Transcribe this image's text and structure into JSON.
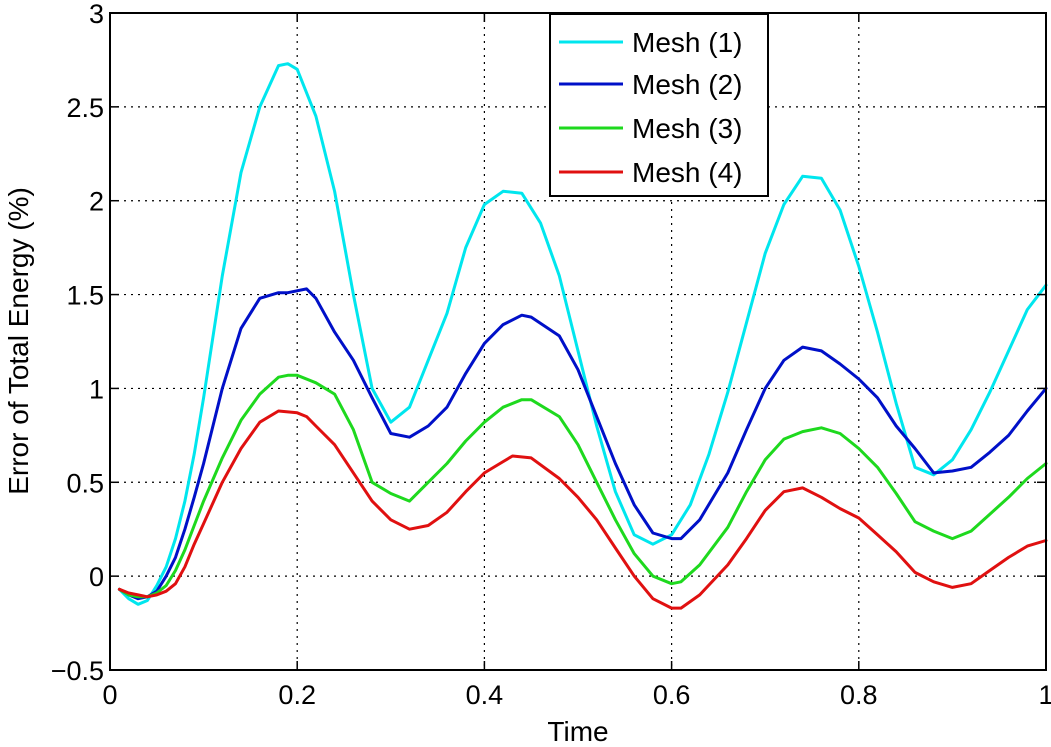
{
  "chart_data": {
    "type": "line",
    "title": "",
    "xlabel": "Time",
    "ylabel": "Error of Total Energy (%)",
    "xlim": [
      0,
      1
    ],
    "ylim": [
      -0.5,
      3
    ],
    "xticks": [
      0,
      0.2,
      0.4,
      0.6,
      0.8,
      1
    ],
    "xtick_labels": [
      "0",
      "0.2",
      "0.4",
      "0.6",
      "0.8",
      "1"
    ],
    "yticks": [
      -0.5,
      0,
      0.5,
      1,
      1.5,
      2,
      2.5,
      3
    ],
    "ytick_labels": [
      "−0.5",
      "0",
      "0.5",
      "1",
      "1.5",
      "2",
      "2.5",
      "3"
    ],
    "grid": true,
    "legend_position": "top-right",
    "series": [
      {
        "name": "Mesh (1)",
        "color": "#00e6ee",
        "x": [
          0.01,
          0.02,
          0.03,
          0.04,
          0.05,
          0.06,
          0.07,
          0.08,
          0.09,
          0.1,
          0.12,
          0.14,
          0.16,
          0.18,
          0.19,
          0.2,
          0.22,
          0.24,
          0.26,
          0.28,
          0.3,
          0.32,
          0.34,
          0.36,
          0.38,
          0.4,
          0.42,
          0.44,
          0.46,
          0.48,
          0.5,
          0.52,
          0.54,
          0.56,
          0.58,
          0.6,
          0.62,
          0.64,
          0.66,
          0.68,
          0.7,
          0.72,
          0.74,
          0.76,
          0.78,
          0.8,
          0.82,
          0.84,
          0.86,
          0.88,
          0.9,
          0.92,
          0.94,
          0.96,
          0.98,
          1.0
        ],
        "values": [
          -0.07,
          -0.12,
          -0.15,
          -0.13,
          -0.05,
          0.05,
          0.2,
          0.4,
          0.65,
          0.95,
          1.6,
          2.15,
          2.5,
          2.72,
          2.73,
          2.7,
          2.45,
          2.05,
          1.5,
          1.0,
          0.82,
          0.9,
          1.15,
          1.4,
          1.75,
          1.98,
          2.05,
          2.04,
          1.88,
          1.6,
          1.2,
          0.8,
          0.45,
          0.22,
          0.17,
          0.22,
          0.38,
          0.65,
          0.98,
          1.35,
          1.72,
          1.98,
          2.13,
          2.12,
          1.95,
          1.65,
          1.3,
          0.92,
          0.58,
          0.54,
          0.62,
          0.78,
          0.98,
          1.2,
          1.42,
          1.55
        ]
      },
      {
        "name": "Mesh (2)",
        "color": "#0010c8",
        "x": [
          0.01,
          0.02,
          0.03,
          0.04,
          0.05,
          0.06,
          0.07,
          0.08,
          0.09,
          0.1,
          0.12,
          0.14,
          0.16,
          0.18,
          0.19,
          0.21,
          0.22,
          0.24,
          0.26,
          0.28,
          0.3,
          0.32,
          0.34,
          0.36,
          0.38,
          0.4,
          0.42,
          0.44,
          0.45,
          0.48,
          0.5,
          0.52,
          0.54,
          0.56,
          0.58,
          0.6,
          0.61,
          0.63,
          0.66,
          0.68,
          0.7,
          0.72,
          0.74,
          0.76,
          0.78,
          0.8,
          0.82,
          0.84,
          0.86,
          0.88,
          0.9,
          0.92,
          0.94,
          0.96,
          0.98,
          1.0
        ],
        "values": [
          -0.07,
          -0.1,
          -0.12,
          -0.11,
          -0.08,
          0.0,
          0.1,
          0.25,
          0.42,
          0.6,
          1.0,
          1.32,
          1.48,
          1.51,
          1.51,
          1.53,
          1.48,
          1.3,
          1.15,
          0.95,
          0.76,
          0.74,
          0.8,
          0.9,
          1.08,
          1.24,
          1.34,
          1.39,
          1.38,
          1.28,
          1.1,
          0.85,
          0.6,
          0.38,
          0.23,
          0.2,
          0.2,
          0.3,
          0.55,
          0.78,
          1.0,
          1.15,
          1.22,
          1.2,
          1.13,
          1.05,
          0.95,
          0.8,
          0.68,
          0.55,
          0.56,
          0.58,
          0.66,
          0.75,
          0.88,
          1.0
        ]
      },
      {
        "name": "Mesh (3)",
        "color": "#1ed91e",
        "x": [
          0.01,
          0.02,
          0.03,
          0.04,
          0.05,
          0.06,
          0.07,
          0.08,
          0.09,
          0.1,
          0.12,
          0.14,
          0.16,
          0.18,
          0.19,
          0.2,
          0.22,
          0.24,
          0.26,
          0.28,
          0.3,
          0.32,
          0.34,
          0.36,
          0.38,
          0.4,
          0.42,
          0.44,
          0.45,
          0.48,
          0.5,
          0.52,
          0.54,
          0.56,
          0.58,
          0.6,
          0.61,
          0.63,
          0.66,
          0.68,
          0.7,
          0.72,
          0.74,
          0.76,
          0.78,
          0.8,
          0.82,
          0.84,
          0.86,
          0.88,
          0.9,
          0.92,
          0.94,
          0.96,
          0.98,
          1.0
        ],
        "values": [
          -0.07,
          -0.1,
          -0.11,
          -0.11,
          -0.09,
          -0.05,
          0.03,
          0.14,
          0.27,
          0.4,
          0.63,
          0.83,
          0.97,
          1.06,
          1.07,
          1.07,
          1.03,
          0.97,
          0.78,
          0.5,
          0.44,
          0.4,
          0.5,
          0.6,
          0.72,
          0.82,
          0.9,
          0.94,
          0.94,
          0.85,
          0.7,
          0.5,
          0.3,
          0.12,
          0.0,
          -0.04,
          -0.03,
          0.06,
          0.26,
          0.45,
          0.62,
          0.73,
          0.77,
          0.79,
          0.76,
          0.68,
          0.58,
          0.44,
          0.29,
          0.24,
          0.2,
          0.24,
          0.33,
          0.42,
          0.52,
          0.6
        ]
      },
      {
        "name": "Mesh (4)",
        "color": "#e01010",
        "x": [
          0.01,
          0.02,
          0.03,
          0.04,
          0.05,
          0.06,
          0.07,
          0.08,
          0.09,
          0.1,
          0.12,
          0.14,
          0.16,
          0.18,
          0.2,
          0.21,
          0.22,
          0.24,
          0.26,
          0.28,
          0.3,
          0.32,
          0.34,
          0.36,
          0.38,
          0.4,
          0.42,
          0.43,
          0.45,
          0.48,
          0.5,
          0.52,
          0.54,
          0.56,
          0.58,
          0.6,
          0.61,
          0.63,
          0.66,
          0.68,
          0.7,
          0.72,
          0.74,
          0.76,
          0.78,
          0.8,
          0.82,
          0.84,
          0.86,
          0.88,
          0.9,
          0.92,
          0.94,
          0.96,
          0.98,
          1.0
        ],
        "values": [
          -0.07,
          -0.09,
          -0.1,
          -0.11,
          -0.1,
          -0.08,
          -0.04,
          0.05,
          0.17,
          0.28,
          0.5,
          0.68,
          0.82,
          0.88,
          0.87,
          0.85,
          0.8,
          0.7,
          0.55,
          0.4,
          0.3,
          0.25,
          0.27,
          0.34,
          0.45,
          0.55,
          0.61,
          0.64,
          0.63,
          0.52,
          0.42,
          0.3,
          0.15,
          0.0,
          -0.12,
          -0.17,
          -0.17,
          -0.1,
          0.06,
          0.2,
          0.35,
          0.45,
          0.47,
          0.42,
          0.36,
          0.31,
          0.22,
          0.13,
          0.02,
          -0.03,
          -0.06,
          -0.04,
          0.03,
          0.1,
          0.16,
          0.19
        ]
      }
    ]
  }
}
